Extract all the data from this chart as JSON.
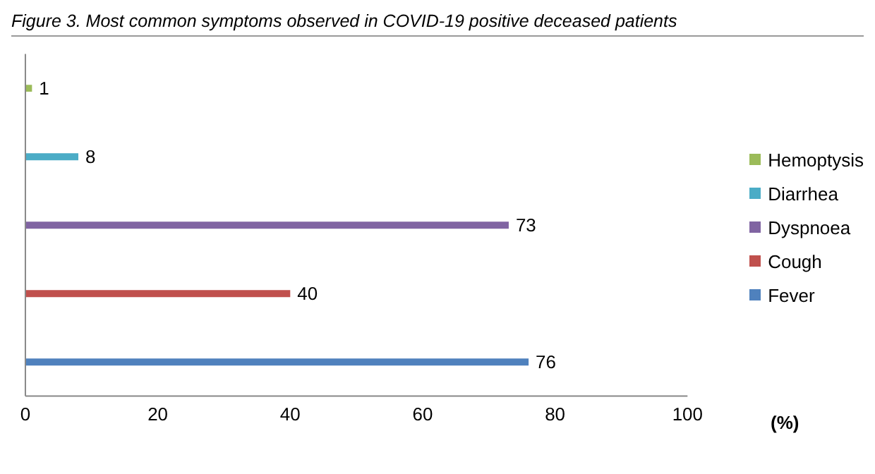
{
  "chart_data": {
    "type": "bar",
    "orientation": "horizontal",
    "stacked": true,
    "title": "Figure 3. Most common symptoms observed in COVID-19 positive deceased patients",
    "xlabel": "(%)",
    "categories": [
      null,
      null,
      null,
      null,
      null
    ],
    "series": [
      {
        "name": "Hemoptysis",
        "color": "#9bbb59",
        "values": [
          1,
          null,
          null,
          null,
          null
        ]
      },
      {
        "name": "Diarrhea",
        "color": "#4bacc6",
        "values": [
          null,
          8,
          null,
          null,
          null
        ]
      },
      {
        "name": "Dyspnoea",
        "color": "#8064a2",
        "values": [
          null,
          null,
          73,
          null,
          null
        ]
      },
      {
        "name": "Cough",
        "color": "#c0504d",
        "values": [
          null,
          null,
          null,
          40,
          null
        ]
      },
      {
        "name": "Fever",
        "color": "#4f81bd",
        "values": [
          null,
          null,
          null,
          null,
          76
        ]
      }
    ],
    "xlim": [
      0,
      100
    ],
    "xticks": [
      0,
      20,
      40,
      60,
      80,
      100
    ],
    "data_labels": true,
    "legend": "right",
    "grid": false
  }
}
